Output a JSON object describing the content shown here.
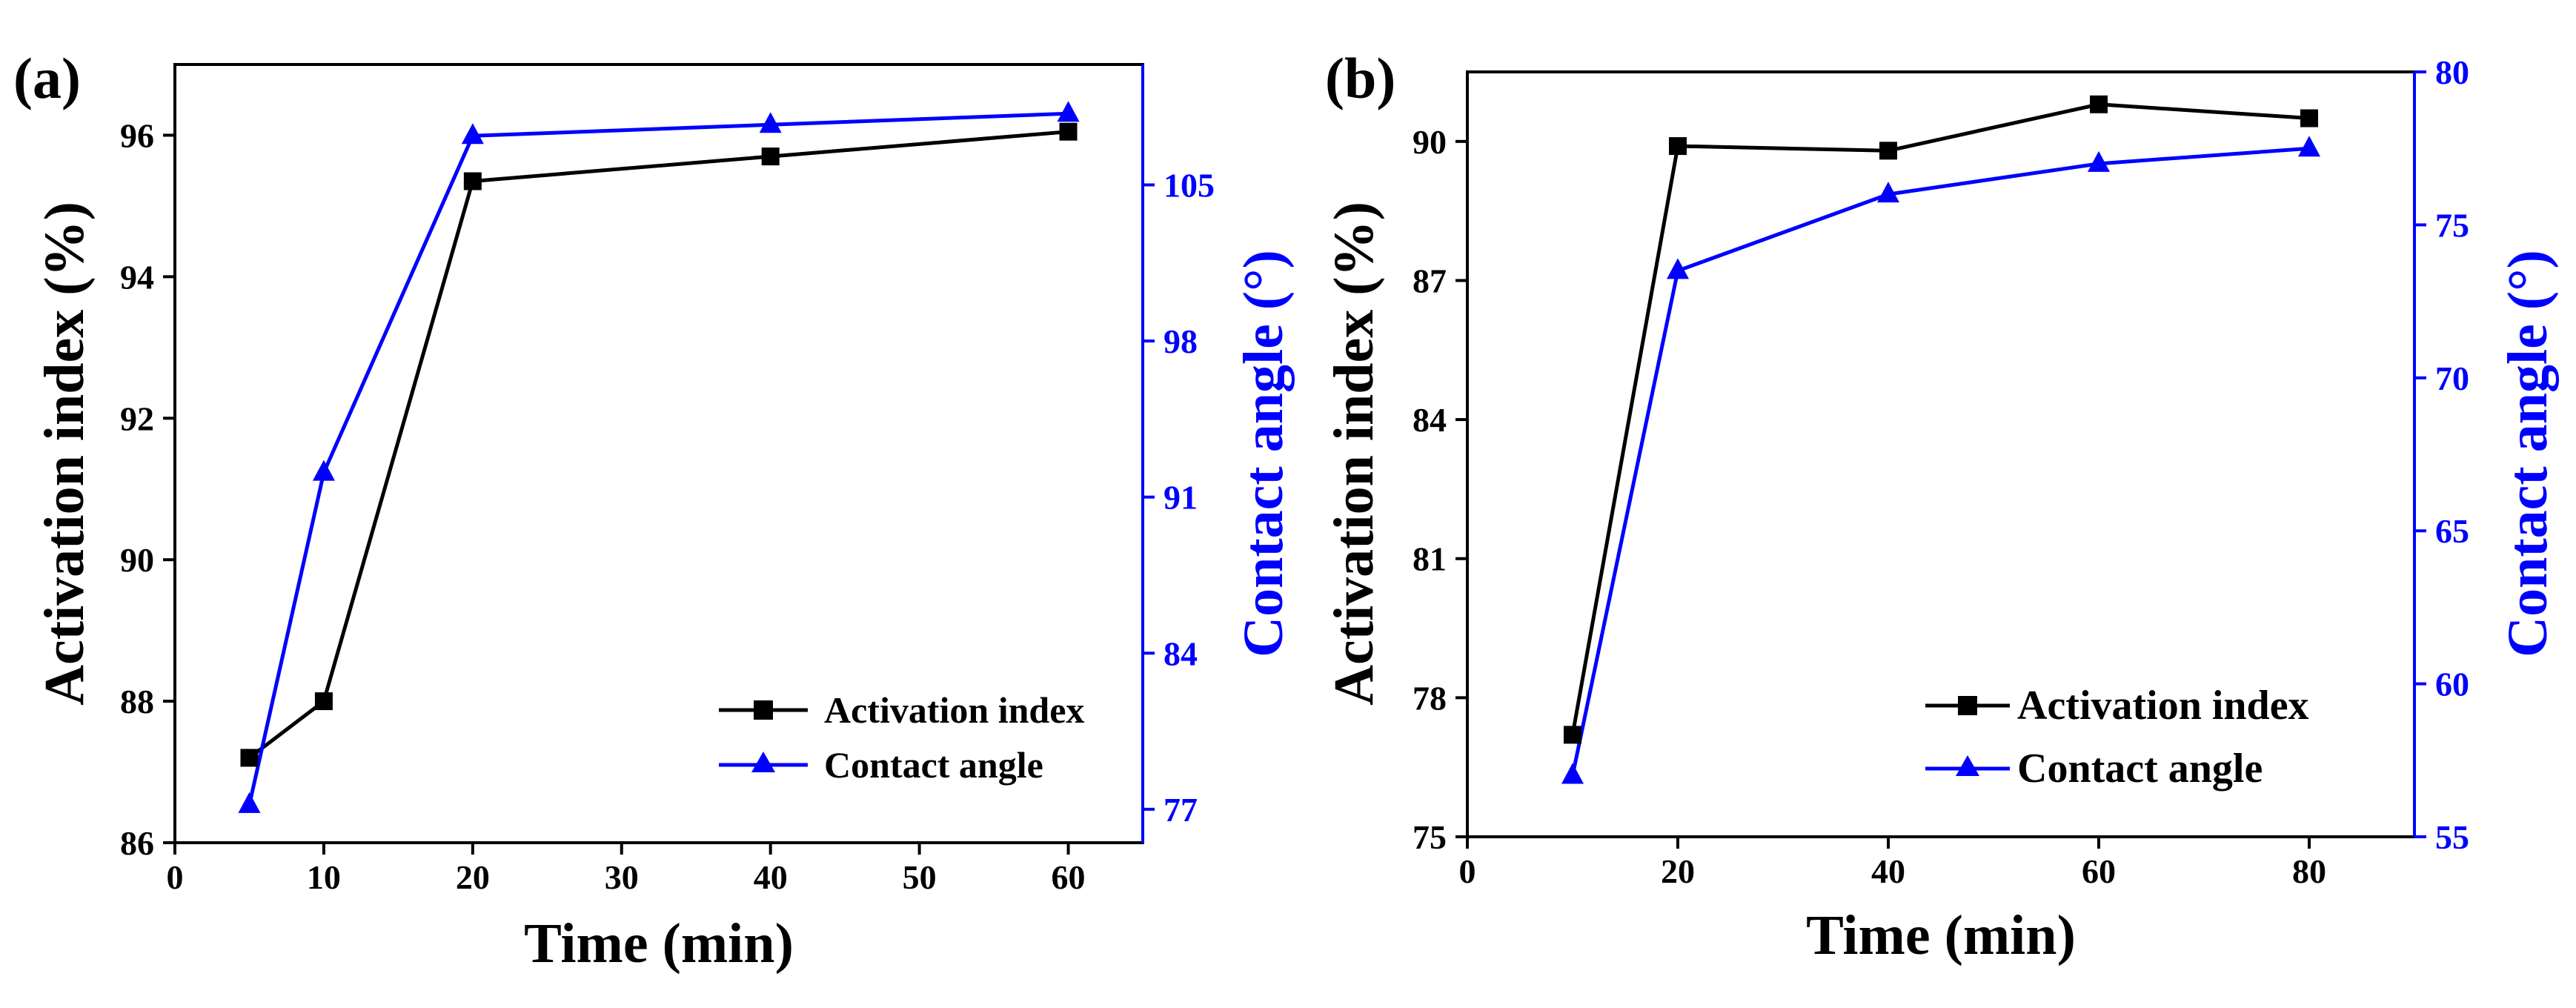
{
  "colors": {
    "black": "#000000",
    "blue": "#0000ff"
  },
  "chart_data": [
    {
      "type": "line",
      "panel_label": "(a)",
      "xlabel": "Time (min)",
      "ylabel": "Activation index (%)",
      "y2label": "Contact angle (°)",
      "xlim": [
        0,
        65
      ],
      "ylim": [
        86,
        97
      ],
      "y2lim": [
        75.5,
        110.4
      ],
      "xticks": [
        0,
        10,
        20,
        30,
        40,
        50,
        60
      ],
      "yticks": [
        86,
        88,
        90,
        92,
        94,
        96
      ],
      "y2ticks": [
        77,
        84,
        91,
        98,
        105
      ],
      "grid": false,
      "legend_position": "bottom-right",
      "series": [
        {
          "name": "Activation index",
          "axis": "left",
          "marker": "square",
          "color": "#000000",
          "x": [
            5,
            10,
            20,
            40,
            60
          ],
          "values": [
            87.2,
            88.0,
            95.35,
            95.7,
            96.05
          ]
        },
        {
          "name": "Contact angle",
          "axis": "right",
          "marker": "triangle",
          "color": "#0000ff",
          "x": [
            5,
            10,
            20,
            40,
            60
          ],
          "values": [
            77.2,
            92.1,
            107.2,
            107.7,
            108.2
          ]
        }
      ]
    },
    {
      "type": "line",
      "panel_label": "(b)",
      "xlabel": "Time (min)",
      "ylabel": "Activation index (%)",
      "y2label": "Contact angle (°)",
      "xlim": [
        0,
        90
      ],
      "ylim": [
        75,
        91.5
      ],
      "y2lim": [
        55,
        80
      ],
      "xticks": [
        0,
        20,
        40,
        60,
        80
      ],
      "yticks": [
        75,
        78,
        81,
        84,
        87,
        90
      ],
      "y2ticks": [
        55,
        60,
        65,
        70,
        75,
        80
      ],
      "grid": false,
      "legend_position": "bottom-right",
      "series": [
        {
          "name": "Activation index",
          "axis": "left",
          "marker": "square",
          "color": "#000000",
          "x": [
            10,
            20,
            40,
            60,
            80
          ],
          "values": [
            77.2,
            89.9,
            89.8,
            90.8,
            90.5
          ]
        },
        {
          "name": "Contact angle",
          "axis": "right",
          "marker": "triangle",
          "color": "#0000ff",
          "x": [
            10,
            20,
            40,
            60,
            80
          ],
          "values": [
            57.0,
            73.5,
            76.0,
            77.0,
            77.5
          ]
        }
      ]
    }
  ]
}
